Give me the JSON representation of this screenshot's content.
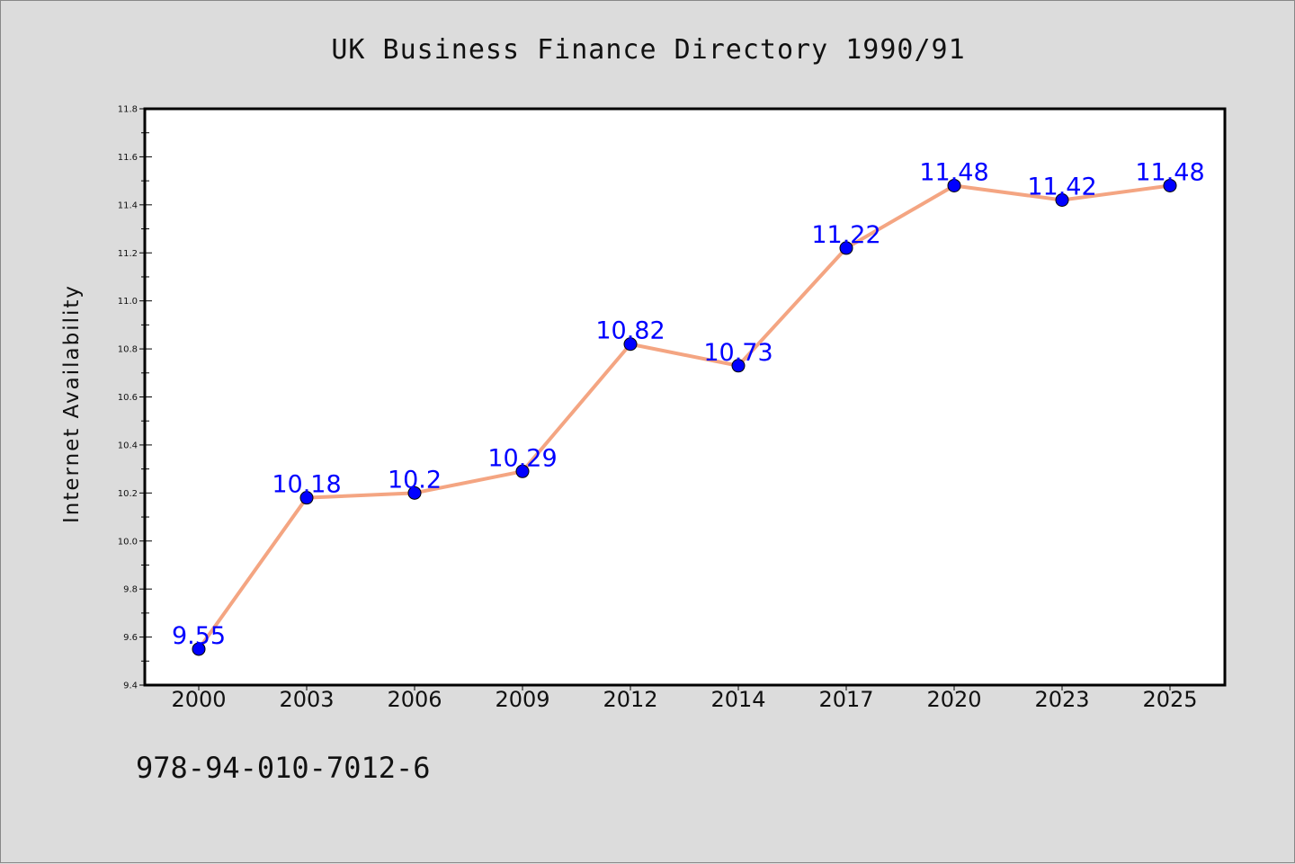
{
  "chart_data": {
    "type": "line",
    "title": "UK Business Finance Directory 1990/91",
    "xlabel": "",
    "ylabel": "Internet Availability",
    "categories": [
      "2000",
      "2003",
      "2006",
      "2009",
      "2012",
      "2014",
      "2017",
      "2020",
      "2023",
      "2025"
    ],
    "series": [
      {
        "values": [
          9.55,
          10.18,
          10.2,
          10.29,
          10.82,
          10.73,
          11.22,
          11.48,
          11.42,
          11.48
        ],
        "data_labels": [
          "9.55",
          "10.18",
          "10.2",
          "10.29",
          "10.82",
          "10.73",
          "11.22",
          "11.48",
          "11.42",
          "11.48"
        ]
      }
    ],
    "ylim": [
      9.4,
      11.8
    ],
    "yticks": [
      "9.4",
      "9.6",
      "9.8",
      "10.0",
      "10.2",
      "10.4",
      "10.6",
      "10.8",
      "11.0",
      "11.2",
      "11.4",
      "11.6",
      "11.8"
    ],
    "grid": false,
    "legend": "none",
    "colors": {
      "line": "#f4a582",
      "marker": "#0000ff",
      "data_label": "#0000ff",
      "plot_background": "#ffffff",
      "figure_background": "#dcdcdc"
    }
  },
  "footer": {
    "isbn": "978-94-010-7012-6"
  }
}
